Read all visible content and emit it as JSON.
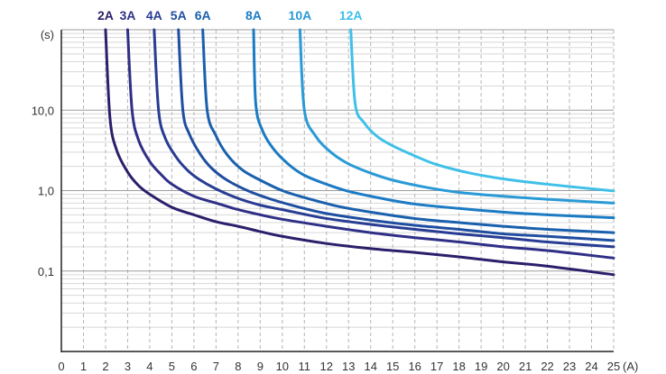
{
  "chart_data": {
    "type": "line",
    "xlabel": "(A)",
    "ylabel": "(s)",
    "xlim": [
      0,
      25
    ],
    "ylim": [
      0.01,
      100
    ],
    "y_scale": "log",
    "grid": true,
    "legend_placement": "top",
    "x_ticks": [
      "0",
      "1",
      "2",
      "3",
      "4",
      "5",
      "6",
      "7",
      "8",
      "9",
      "10",
      "11",
      "12",
      "13",
      "14",
      "15",
      "16",
      "17",
      "18",
      "19",
      "20",
      "21",
      "22",
      "23",
      "24",
      "25"
    ],
    "y_ticks": [
      {
        "label": "10,0",
        "value": 10
      },
      {
        "label": "1,0",
        "value": 1
      },
      {
        "label": "0,1",
        "value": 0.1
      }
    ],
    "series": [
      {
        "name": "2A",
        "color": "#2b1f6b",
        "x": [
          2.0,
          2.2,
          2.5,
          3,
          3.5,
          4,
          5,
          6,
          7,
          8,
          9,
          10,
          12,
          14,
          16,
          18,
          20,
          22,
          25
        ],
        "y": [
          100,
          8,
          3.2,
          1.7,
          1.15,
          0.9,
          0.62,
          0.5,
          0.41,
          0.36,
          0.31,
          0.27,
          0.22,
          0.19,
          0.17,
          0.15,
          0.13,
          0.115,
          0.09
        ]
      },
      {
        "name": "3A",
        "color": "#2f2f87",
        "x": [
          3.0,
          3.2,
          3.5,
          4,
          4.5,
          5,
          6,
          7,
          8,
          9,
          10,
          12,
          14,
          16,
          18,
          20,
          22,
          25
        ],
        "y": [
          100,
          10,
          4.2,
          2.3,
          1.6,
          1.2,
          0.85,
          0.7,
          0.58,
          0.5,
          0.44,
          0.36,
          0.3,
          0.26,
          0.23,
          0.2,
          0.18,
          0.145
        ]
      },
      {
        "name": "4A",
        "color": "#283c93",
        "x": [
          4.2,
          4.4,
          4.7,
          5.2,
          5.7,
          6.2,
          7,
          8,
          9,
          10,
          12,
          14,
          16,
          18,
          20,
          22,
          25
        ],
        "y": [
          100,
          10,
          4.5,
          2.6,
          1.8,
          1.4,
          1.05,
          0.8,
          0.66,
          0.58,
          0.45,
          0.38,
          0.33,
          0.29,
          0.26,
          0.23,
          0.2
        ]
      },
      {
        "name": "5A",
        "color": "#1f4ea0",
        "x": [
          5.3,
          5.5,
          5.8,
          6.3,
          6.8,
          7.5,
          8.5,
          9.5,
          10.5,
          12,
          14,
          16,
          18,
          20,
          22,
          25
        ],
        "y": [
          100,
          10,
          5,
          2.8,
          1.9,
          1.35,
          0.98,
          0.78,
          0.65,
          0.52,
          0.43,
          0.37,
          0.33,
          0.29,
          0.27,
          0.24
        ]
      },
      {
        "name": "6A",
        "color": "#1a60ad",
        "x": [
          6.4,
          6.6,
          7,
          7.5,
          8.2,
          9,
          10,
          11,
          12.5,
          14,
          16,
          18,
          20,
          22,
          25
        ],
        "y": [
          100,
          10,
          4.8,
          2.8,
          1.8,
          1.35,
          1.0,
          0.82,
          0.64,
          0.54,
          0.45,
          0.4,
          0.36,
          0.33,
          0.3
        ]
      },
      {
        "name": "8A",
        "color": "#1b7bc4",
        "x": [
          8.7,
          8.8,
          9.1,
          9.6,
          10.3,
          11,
          12,
          13,
          14.5,
          16,
          18,
          20,
          22,
          25
        ],
        "y": [
          100,
          12,
          5.6,
          3.3,
          2.1,
          1.55,
          1.2,
          0.98,
          0.8,
          0.68,
          0.6,
          0.54,
          0.5,
          0.46
        ]
      },
      {
        "name": "10A",
        "color": "#2a9ad6",
        "x": [
          10.8,
          11,
          11.5,
          12.2,
          13,
          14,
          15,
          16.5,
          18,
          20,
          22,
          25
        ],
        "y": [
          100,
          10,
          4.8,
          3.0,
          2.15,
          1.65,
          1.35,
          1.1,
          0.95,
          0.85,
          0.78,
          0.7
        ]
      },
      {
        "name": "12A",
        "color": "#3fc0e8",
        "x": [
          13.1,
          13.3,
          13.7,
          14.3,
          15,
          16,
          17,
          18.5,
          20,
          22,
          25
        ],
        "y": [
          100,
          12,
          7,
          4.7,
          3.6,
          2.7,
          2.1,
          1.65,
          1.4,
          1.2,
          0.99
        ]
      }
    ]
  }
}
